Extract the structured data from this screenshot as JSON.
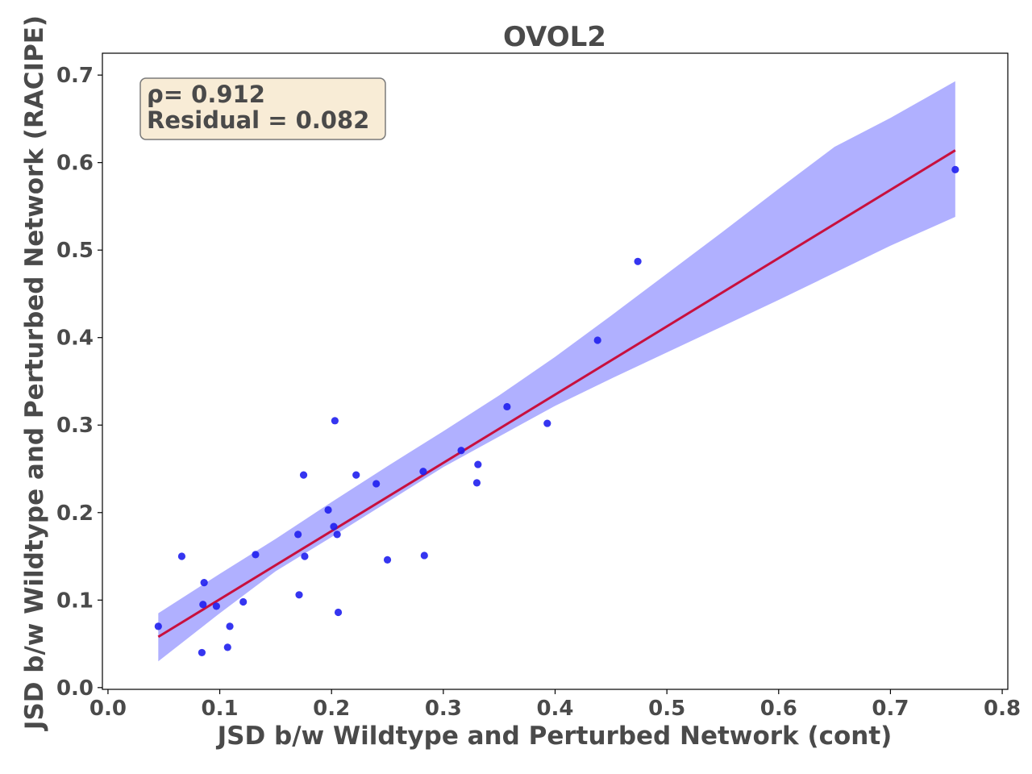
{
  "chart_data": {
    "type": "scatter",
    "title": "OVOL2",
    "xlabel": "JSD b/w Wildtype and Perturbed Network (cont)",
    "ylabel": "JSD b/w Wildtype and Perturbed Network (RACIPE)",
    "xlim": [
      -0.005,
      0.805
    ],
    "ylim": [
      -0.002,
      0.725
    ],
    "xticks": [
      0.0,
      0.1,
      0.2,
      0.3,
      0.4,
      0.5,
      0.6,
      0.7,
      0.8
    ],
    "xtick_labels": [
      "0.0",
      "0.1",
      "0.2",
      "0.3",
      "0.4",
      "0.5",
      "0.6",
      "0.7",
      "0.8"
    ],
    "yticks": [
      0.0,
      0.1,
      0.2,
      0.3,
      0.4,
      0.5,
      0.6,
      0.7
    ],
    "ytick_labels": [
      "0.0",
      "0.1",
      "0.2",
      "0.3",
      "0.4",
      "0.5",
      "0.6",
      "0.7"
    ],
    "grid": false,
    "annotation": {
      "rho_text": "ρ= 0.912",
      "residual_text": "Residual = 0.082",
      "placement": "top-left",
      "box_color": "#f8ecd6"
    },
    "colors": {
      "points": "#1f1fee",
      "fit_line": "#c8103e",
      "confidence_band": "#b0b0ff",
      "text": "#4a4a4a"
    },
    "points": [
      {
        "x": 0.045,
        "y": 0.07
      },
      {
        "x": 0.066,
        "y": 0.15
      },
      {
        "x": 0.084,
        "y": 0.04
      },
      {
        "x": 0.085,
        "y": 0.095
      },
      {
        "x": 0.086,
        "y": 0.12
      },
      {
        "x": 0.097,
        "y": 0.093
      },
      {
        "x": 0.107,
        "y": 0.046
      },
      {
        "x": 0.109,
        "y": 0.07
      },
      {
        "x": 0.121,
        "y": 0.098
      },
      {
        "x": 0.132,
        "y": 0.152
      },
      {
        "x": 0.17,
        "y": 0.175
      },
      {
        "x": 0.171,
        "y": 0.106
      },
      {
        "x": 0.175,
        "y": 0.243
      },
      {
        "x": 0.176,
        "y": 0.15
      },
      {
        "x": 0.197,
        "y": 0.203
      },
      {
        "x": 0.202,
        "y": 0.184
      },
      {
        "x": 0.203,
        "y": 0.305
      },
      {
        "x": 0.205,
        "y": 0.175
      },
      {
        "x": 0.206,
        "y": 0.086
      },
      {
        "x": 0.222,
        "y": 0.243
      },
      {
        "x": 0.24,
        "y": 0.233
      },
      {
        "x": 0.25,
        "y": 0.146
      },
      {
        "x": 0.282,
        "y": 0.247
      },
      {
        "x": 0.283,
        "y": 0.151
      },
      {
        "x": 0.316,
        "y": 0.271
      },
      {
        "x": 0.33,
        "y": 0.234
      },
      {
        "x": 0.331,
        "y": 0.255
      },
      {
        "x": 0.357,
        "y": 0.321
      },
      {
        "x": 0.393,
        "y": 0.302
      },
      {
        "x": 0.438,
        "y": 0.397
      },
      {
        "x": 0.474,
        "y": 0.487
      },
      {
        "x": 0.758,
        "y": 0.592
      }
    ],
    "fit_line": {
      "x": [
        0.045,
        0.758
      ],
      "y": [
        0.058,
        0.614
      ]
    },
    "confidence_band": {
      "x": [
        0.045,
        0.1,
        0.15,
        0.2,
        0.25,
        0.3,
        0.35,
        0.4,
        0.45,
        0.5,
        0.55,
        0.6,
        0.65,
        0.7,
        0.758
      ],
      "lower": [
        0.03,
        0.085,
        0.133,
        0.172,
        0.212,
        0.252,
        0.287,
        0.322,
        0.353,
        0.383,
        0.413,
        0.443,
        0.474,
        0.505,
        0.538
      ],
      "upper": [
        0.085,
        0.13,
        0.17,
        0.212,
        0.253,
        0.293,
        0.334,
        0.378,
        0.425,
        0.473,
        0.521,
        0.57,
        0.618,
        0.651,
        0.693
      ]
    }
  }
}
